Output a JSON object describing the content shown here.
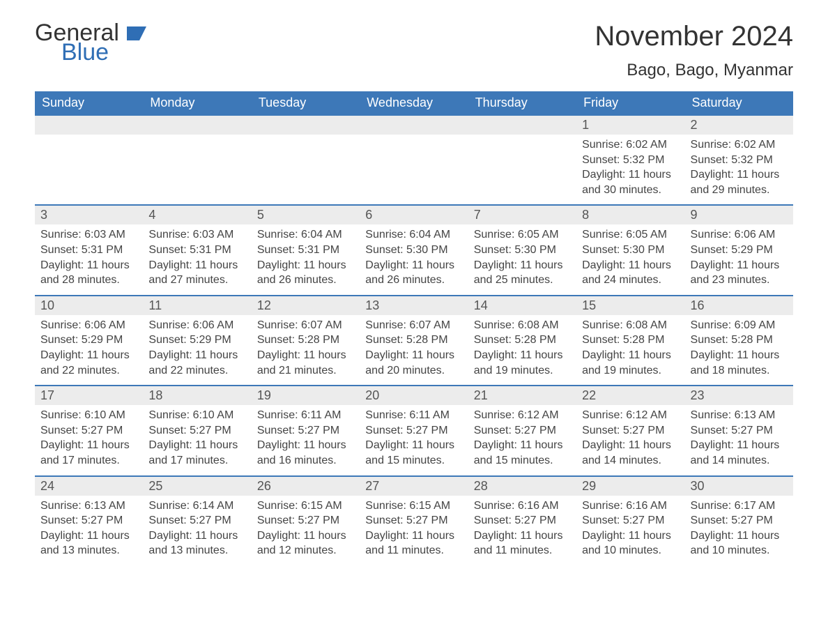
{
  "logo": {
    "text_general": "General",
    "text_blue": "Blue",
    "flag_color": "#2f6eb5"
  },
  "title": "November 2024",
  "location": "Bago, Bago, Myanmar",
  "colors": {
    "header_bg": "#3d78b8",
    "header_text": "#ffffff",
    "daynum_bg": "#ececec",
    "daynum_border": "#3d78b8",
    "body_text": "#444444",
    "page_bg": "#ffffff"
  },
  "day_headers": [
    "Sunday",
    "Monday",
    "Tuesday",
    "Wednesday",
    "Thursday",
    "Friday",
    "Saturday"
  ],
  "weeks": [
    [
      null,
      null,
      null,
      null,
      null,
      {
        "n": "1",
        "sunrise": "6:02 AM",
        "sunset": "5:32 PM",
        "daylight": "11 hours and 30 minutes."
      },
      {
        "n": "2",
        "sunrise": "6:02 AM",
        "sunset": "5:32 PM",
        "daylight": "11 hours and 29 minutes."
      }
    ],
    [
      {
        "n": "3",
        "sunrise": "6:03 AM",
        "sunset": "5:31 PM",
        "daylight": "11 hours and 28 minutes."
      },
      {
        "n": "4",
        "sunrise": "6:03 AM",
        "sunset": "5:31 PM",
        "daylight": "11 hours and 27 minutes."
      },
      {
        "n": "5",
        "sunrise": "6:04 AM",
        "sunset": "5:31 PM",
        "daylight": "11 hours and 26 minutes."
      },
      {
        "n": "6",
        "sunrise": "6:04 AM",
        "sunset": "5:30 PM",
        "daylight": "11 hours and 26 minutes."
      },
      {
        "n": "7",
        "sunrise": "6:05 AM",
        "sunset": "5:30 PM",
        "daylight": "11 hours and 25 minutes."
      },
      {
        "n": "8",
        "sunrise": "6:05 AM",
        "sunset": "5:30 PM",
        "daylight": "11 hours and 24 minutes."
      },
      {
        "n": "9",
        "sunrise": "6:06 AM",
        "sunset": "5:29 PM",
        "daylight": "11 hours and 23 minutes."
      }
    ],
    [
      {
        "n": "10",
        "sunrise": "6:06 AM",
        "sunset": "5:29 PM",
        "daylight": "11 hours and 22 minutes."
      },
      {
        "n": "11",
        "sunrise": "6:06 AM",
        "sunset": "5:29 PM",
        "daylight": "11 hours and 22 minutes."
      },
      {
        "n": "12",
        "sunrise": "6:07 AM",
        "sunset": "5:28 PM",
        "daylight": "11 hours and 21 minutes."
      },
      {
        "n": "13",
        "sunrise": "6:07 AM",
        "sunset": "5:28 PM",
        "daylight": "11 hours and 20 minutes."
      },
      {
        "n": "14",
        "sunrise": "6:08 AM",
        "sunset": "5:28 PM",
        "daylight": "11 hours and 19 minutes."
      },
      {
        "n": "15",
        "sunrise": "6:08 AM",
        "sunset": "5:28 PM",
        "daylight": "11 hours and 19 minutes."
      },
      {
        "n": "16",
        "sunrise": "6:09 AM",
        "sunset": "5:28 PM",
        "daylight": "11 hours and 18 minutes."
      }
    ],
    [
      {
        "n": "17",
        "sunrise": "6:10 AM",
        "sunset": "5:27 PM",
        "daylight": "11 hours and 17 minutes."
      },
      {
        "n": "18",
        "sunrise": "6:10 AM",
        "sunset": "5:27 PM",
        "daylight": "11 hours and 17 minutes."
      },
      {
        "n": "19",
        "sunrise": "6:11 AM",
        "sunset": "5:27 PM",
        "daylight": "11 hours and 16 minutes."
      },
      {
        "n": "20",
        "sunrise": "6:11 AM",
        "sunset": "5:27 PM",
        "daylight": "11 hours and 15 minutes."
      },
      {
        "n": "21",
        "sunrise": "6:12 AM",
        "sunset": "5:27 PM",
        "daylight": "11 hours and 15 minutes."
      },
      {
        "n": "22",
        "sunrise": "6:12 AM",
        "sunset": "5:27 PM",
        "daylight": "11 hours and 14 minutes."
      },
      {
        "n": "23",
        "sunrise": "6:13 AM",
        "sunset": "5:27 PM",
        "daylight": "11 hours and 14 minutes."
      }
    ],
    [
      {
        "n": "24",
        "sunrise": "6:13 AM",
        "sunset": "5:27 PM",
        "daylight": "11 hours and 13 minutes."
      },
      {
        "n": "25",
        "sunrise": "6:14 AM",
        "sunset": "5:27 PM",
        "daylight": "11 hours and 13 minutes."
      },
      {
        "n": "26",
        "sunrise": "6:15 AM",
        "sunset": "5:27 PM",
        "daylight": "11 hours and 12 minutes."
      },
      {
        "n": "27",
        "sunrise": "6:15 AM",
        "sunset": "5:27 PM",
        "daylight": "11 hours and 11 minutes."
      },
      {
        "n": "28",
        "sunrise": "6:16 AM",
        "sunset": "5:27 PM",
        "daylight": "11 hours and 11 minutes."
      },
      {
        "n": "29",
        "sunrise": "6:16 AM",
        "sunset": "5:27 PM",
        "daylight": "11 hours and 10 minutes."
      },
      {
        "n": "30",
        "sunrise": "6:17 AM",
        "sunset": "5:27 PM",
        "daylight": "11 hours and 10 minutes."
      }
    ]
  ],
  "labels": {
    "sunrise": "Sunrise:",
    "sunset": "Sunset:",
    "daylight": "Daylight:"
  }
}
